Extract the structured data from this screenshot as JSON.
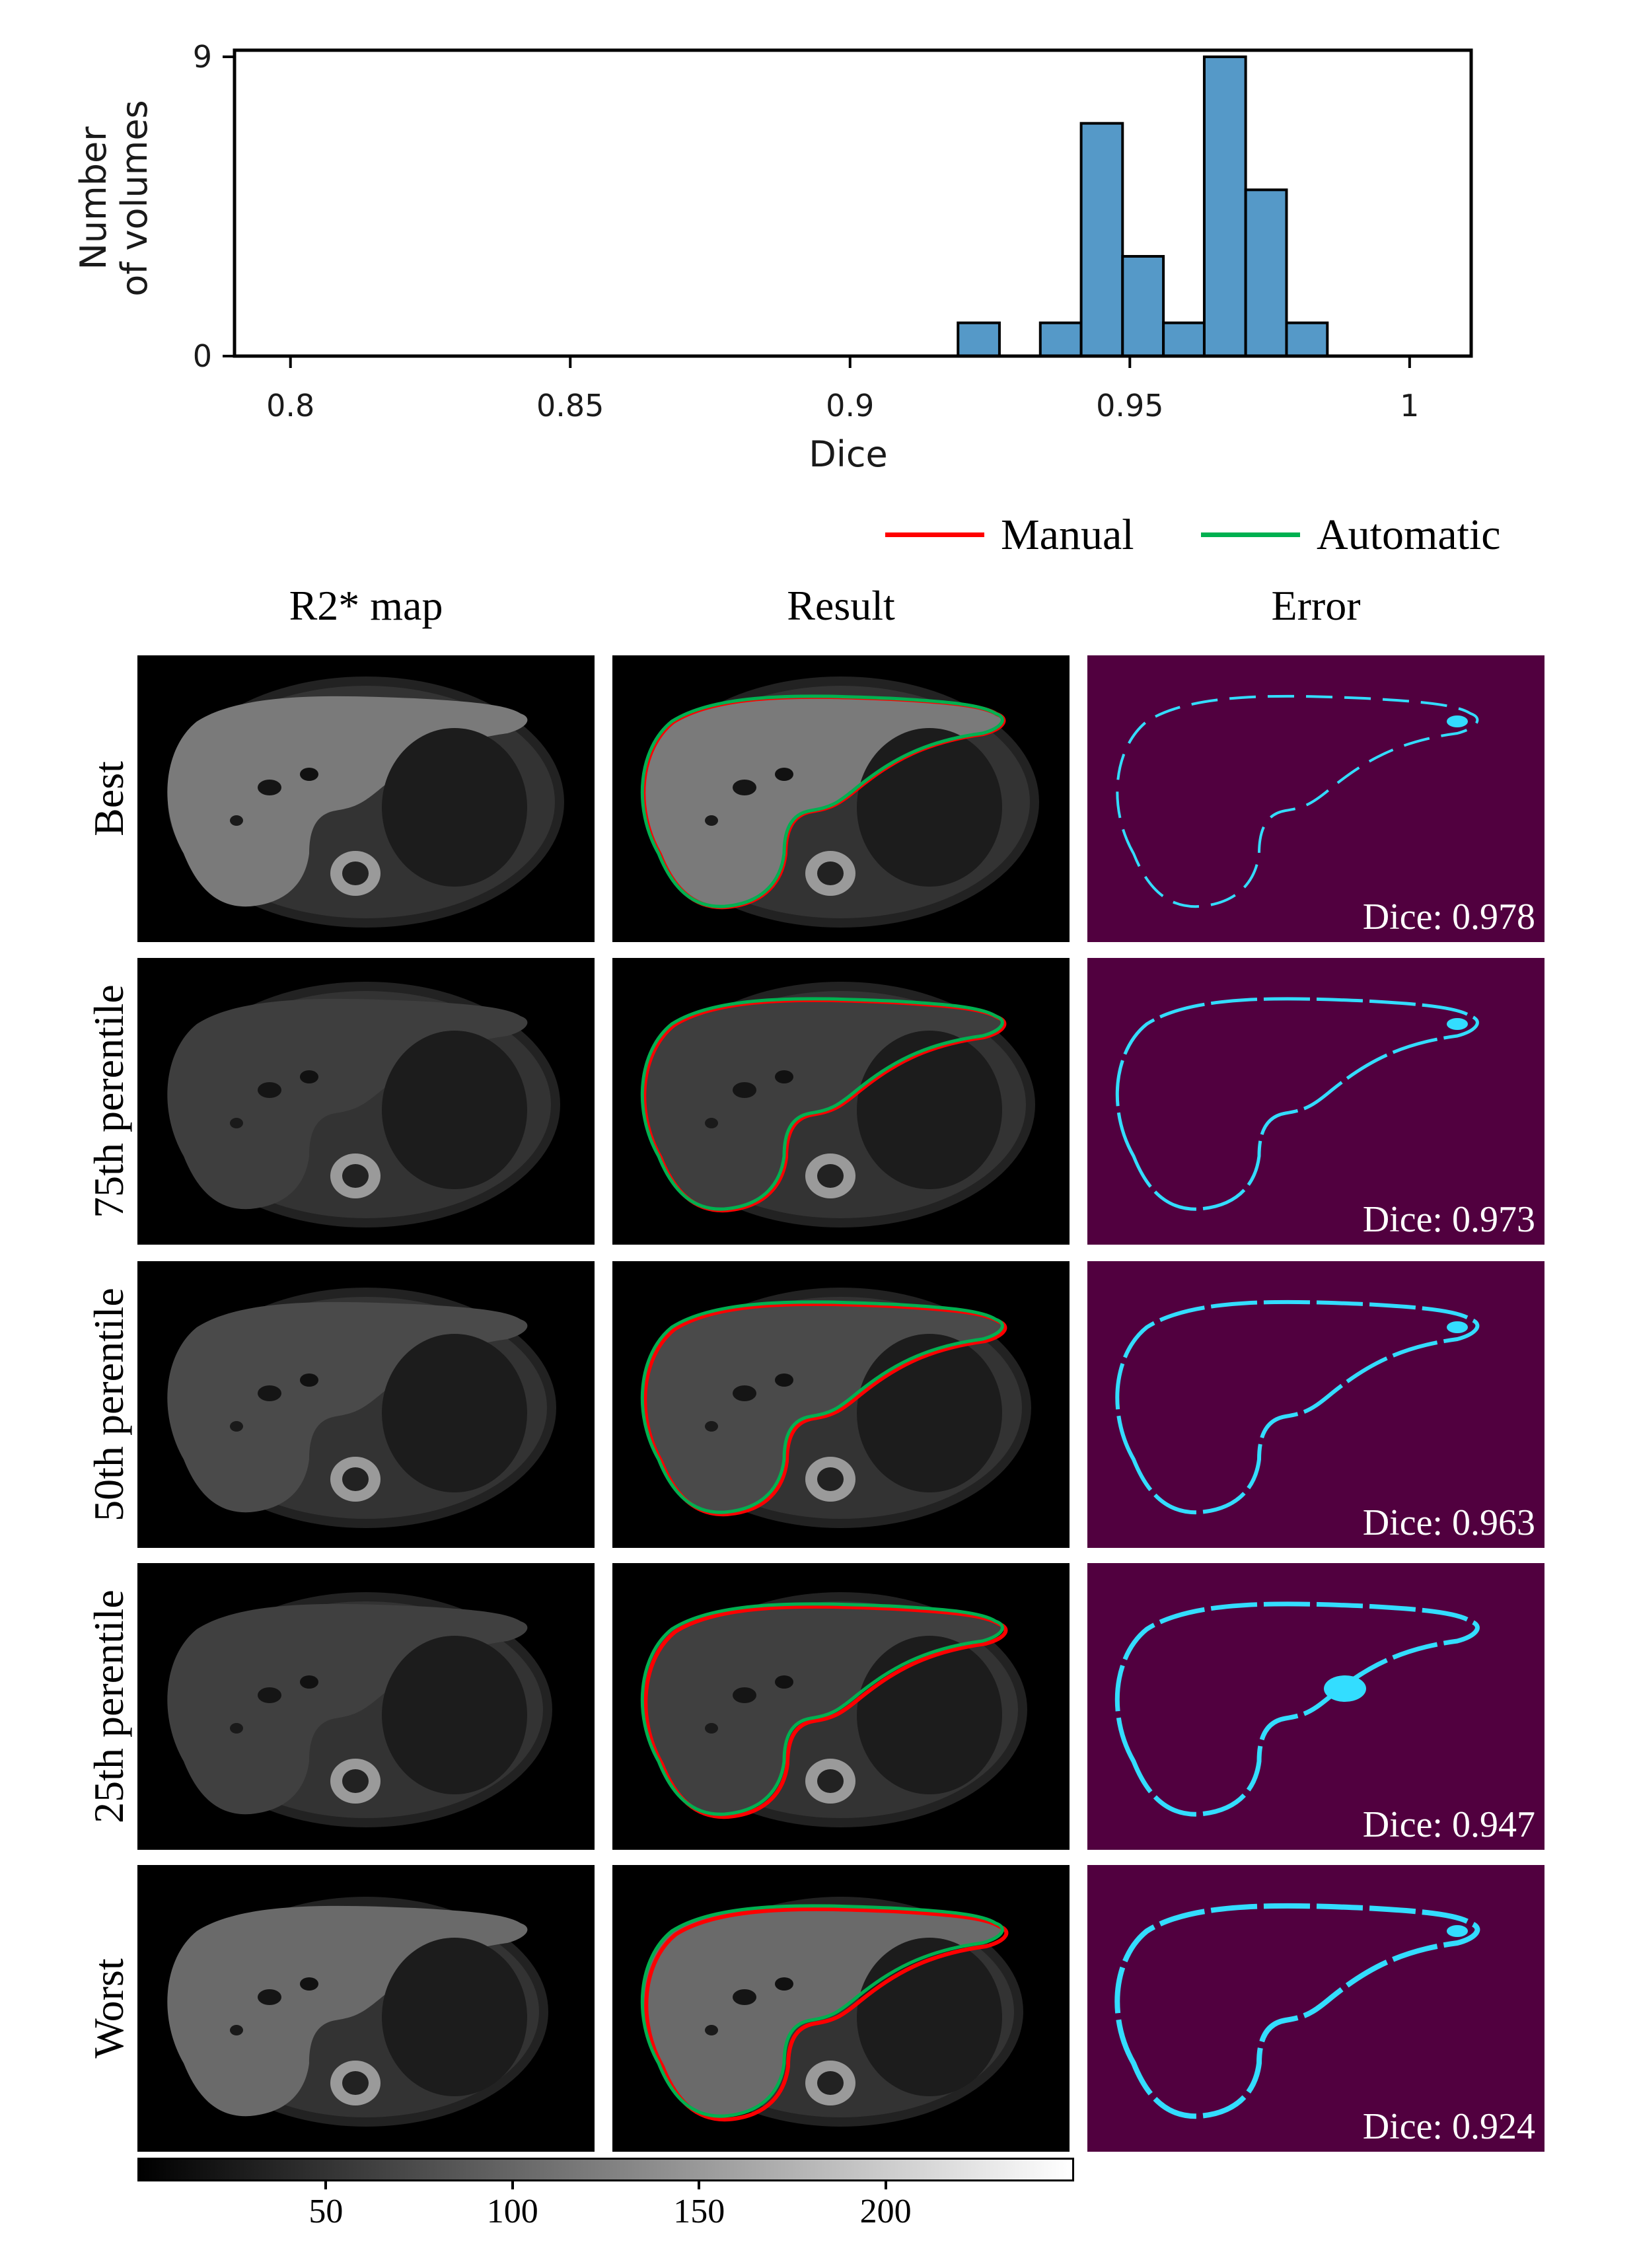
{
  "chart_data": {
    "type": "bar",
    "title": "",
    "xlabel": "Dice",
    "ylabel": "Number\nof volumes",
    "ylabel_lines": [
      "Number",
      "of volumes"
    ],
    "xlim": [
      0.79,
      1.011
    ],
    "ylim": [
      0,
      9
    ],
    "x_ticks": [
      0.8,
      0.85,
      0.9,
      0.95,
      1.0
    ],
    "x_tick_labels": [
      "0.8",
      "0.85",
      "0.9",
      "0.95",
      "1"
    ],
    "y_ticks": [
      0,
      9
    ],
    "y_tick_labels": [
      "0",
      "9"
    ],
    "bin_width": 0.00733,
    "bins": [
      {
        "x0": 0.9193,
        "x1": 0.9267,
        "count": 1
      },
      {
        "x0": 0.934,
        "x1": 0.9413,
        "count": 1
      },
      {
        "x0": 0.9413,
        "x1": 0.9487,
        "count": 7
      },
      {
        "x0": 0.9487,
        "x1": 0.956,
        "count": 3
      },
      {
        "x0": 0.956,
        "x1": 0.9633,
        "count": 1
      },
      {
        "x0": 0.9633,
        "x1": 0.9707,
        "count": 9
      },
      {
        "x0": 0.9707,
        "x1": 0.978,
        "count": 5
      },
      {
        "x0": 0.978,
        "x1": 0.9853,
        "count": 1
      }
    ],
    "bar_color": "#5599c8",
    "grid": false
  },
  "legend": {
    "items": [
      {
        "label": "Manual",
        "color": "#ff0000"
      },
      {
        "label": "Automatic",
        "color": "#00b050"
      }
    ]
  },
  "columns": [
    "R2* map",
    "Result",
    "Error"
  ],
  "rows": [
    {
      "label": "Best",
      "dice": "Dice: 0.978"
    },
    {
      "label": "75th perentile",
      "dice": "Dice: 0.973"
    },
    {
      "label": "50th perentile",
      "dice": "Dice: 0.963"
    },
    {
      "label": "25th perentile",
      "dice": "Dice: 0.947"
    },
    {
      "label": "Worst",
      "dice": "Dice: 0.924"
    }
  ],
  "colorbar": {
    "tick_labels": [
      "50",
      "100",
      "150",
      "200"
    ],
    "ticks": [
      50,
      100,
      150,
      200
    ],
    "range": [
      0,
      250
    ]
  },
  "colors": {
    "error_background": "#51003f",
    "error_contour": "#33ddff",
    "manual_contour": "#ff0000",
    "automatic_contour": "#00b050"
  }
}
